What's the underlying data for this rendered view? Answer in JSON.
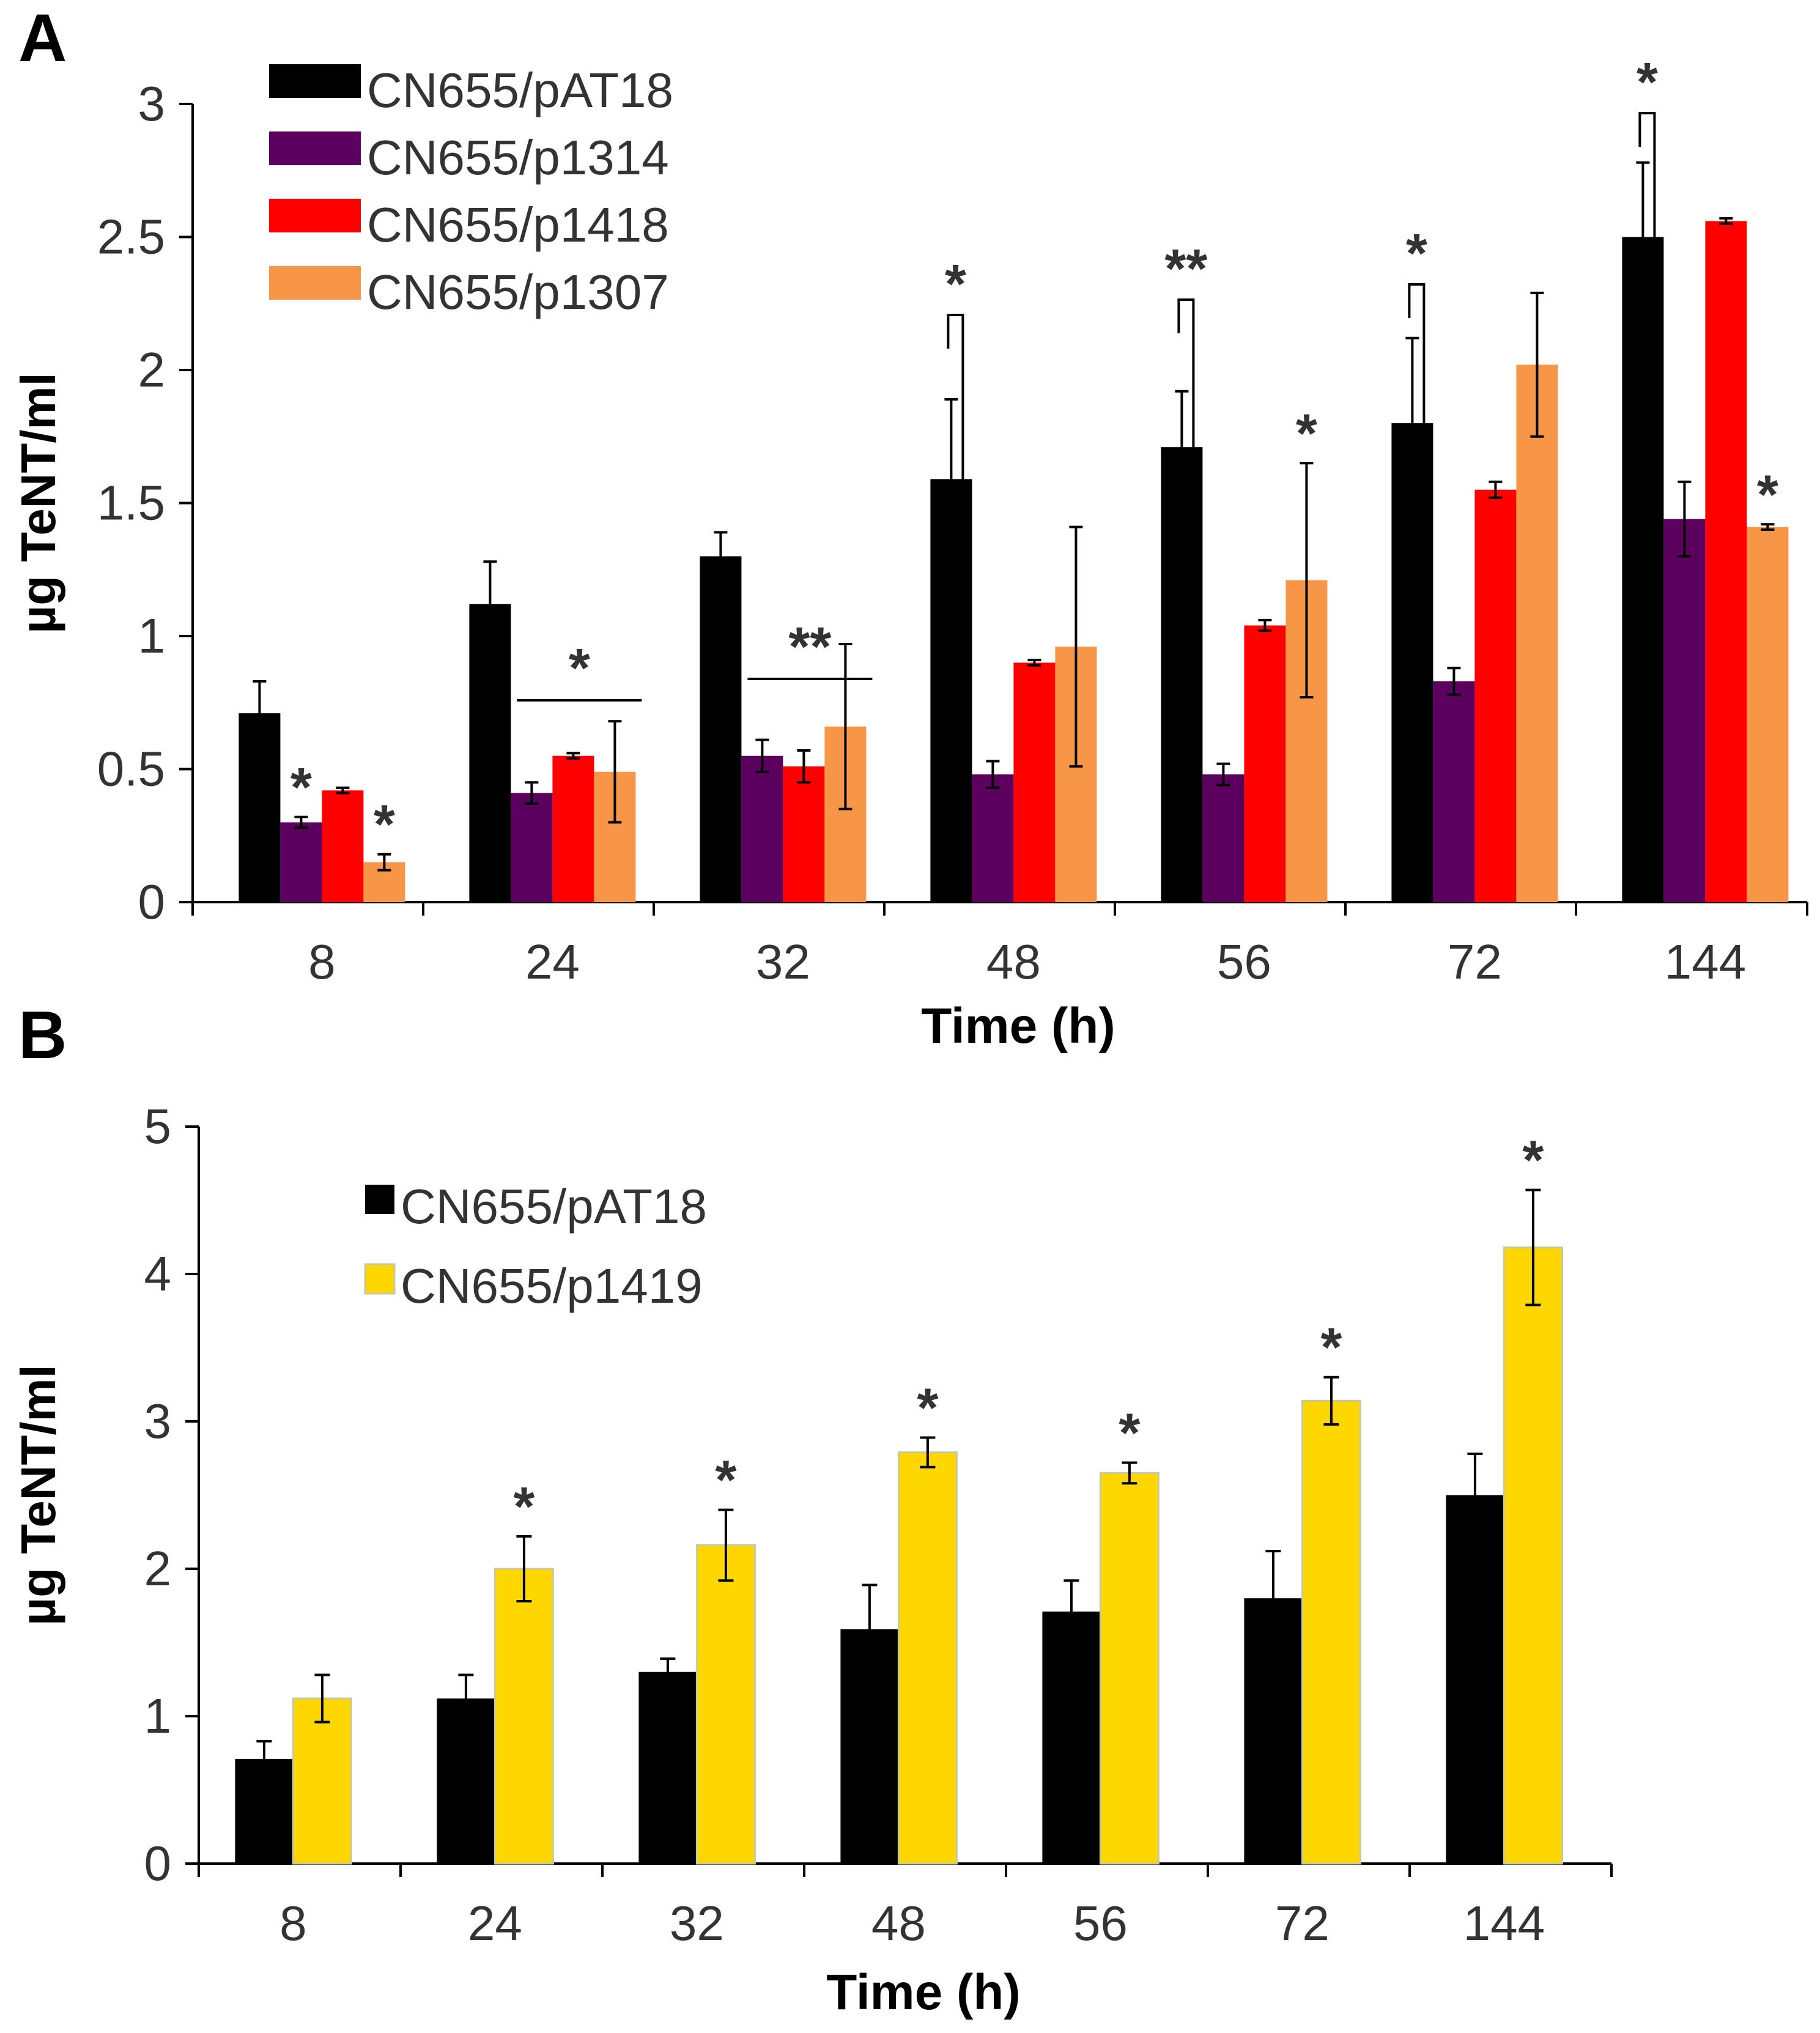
{
  "chart_data": [
    {
      "panel_label": "A",
      "type": "bar",
      "ylabel": "µg TeNT/ml",
      "xlabel": "Time (h)",
      "ylim": [
        0,
        3
      ],
      "yticks": [
        "0",
        "0.5",
        "1",
        "1.5",
        "2",
        "2.5",
        "3"
      ],
      "categories": [
        "8",
        "24",
        "32",
        "48",
        "56",
        "72",
        "144"
      ],
      "legend_position": "top-left",
      "series": [
        {
          "name": "CN655/pAT18",
          "color": "#000000",
          "values": [
            0.71,
            1.12,
            1.3,
            1.59,
            1.71,
            1.8,
            2.5
          ],
          "errors": [
            0.12,
            0.16,
            0.09,
            0.3,
            0.21,
            0.32,
            0.28
          ]
        },
        {
          "name": "CN655/p1314",
          "color": "#5c0060",
          "values": [
            0.3,
            0.41,
            0.55,
            0.48,
            0.48,
            0.83,
            1.44
          ],
          "errors": [
            0.02,
            0.04,
            0.06,
            0.05,
            0.04,
            0.05,
            0.14
          ]
        },
        {
          "name": "CN655/p1418",
          "color": "#ff0000",
          "values": [
            0.42,
            0.55,
            0.51,
            0.9,
            1.04,
            1.55,
            2.56
          ],
          "errors": [
            0.01,
            0.01,
            0.06,
            0.01,
            0.02,
            0.03,
            0.01
          ]
        },
        {
          "name": "CN655/p1307",
          "color": "#f79646",
          "values": [
            0.15,
            0.49,
            0.66,
            0.96,
            1.21,
            2.02,
            1.41
          ],
          "errors": [
            0.03,
            0.19,
            0.31,
            0.45,
            0.44,
            0.27,
            0.01
          ]
        }
      ],
      "significance": [
        {
          "label": "*",
          "type": "star",
          "group": 0,
          "series": 1
        },
        {
          "label": "*",
          "type": "star",
          "group": 0,
          "series": 3
        },
        {
          "label": "*",
          "type": "line",
          "group": 1
        },
        {
          "label": "**",
          "type": "line",
          "group": 2
        },
        {
          "label": "*",
          "type": "bracket",
          "group": 3
        },
        {
          "label": "**",
          "type": "bracket",
          "group": 4
        },
        {
          "label": "*",
          "type": "star",
          "group": 4,
          "series": 3
        },
        {
          "label": "*",
          "type": "bracket",
          "group": 5
        },
        {
          "label": "*",
          "type": "bracket",
          "group": 6
        },
        {
          "label": "*",
          "type": "star",
          "group": 6,
          "series": 3
        }
      ]
    },
    {
      "panel_label": "B",
      "type": "bar",
      "ylabel": "µg TeNT/ml",
      "xlabel": "Time (h)",
      "ylim": [
        0,
        5
      ],
      "yticks": [
        "0",
        "1",
        "2",
        "3",
        "4",
        "5"
      ],
      "categories": [
        "8",
        "24",
        "32",
        "48",
        "56",
        "72",
        "144"
      ],
      "legend_position": "top-left",
      "series": [
        {
          "name": "CN655/pAT18",
          "color": "#000000",
          "values": [
            0.71,
            1.12,
            1.3,
            1.59,
            1.71,
            1.8,
            2.5
          ],
          "errors": [
            0.12,
            0.16,
            0.09,
            0.3,
            0.21,
            0.32,
            0.28
          ]
        },
        {
          "name": "CN655/p1419",
          "color": "#ffd700",
          "values": [
            1.12,
            2.0,
            2.16,
            2.79,
            2.65,
            3.14,
            4.18
          ],
          "errors": [
            0.16,
            0.22,
            0.24,
            0.1,
            0.07,
            0.16,
            0.39
          ]
        }
      ],
      "significance": [
        {
          "label": "*",
          "type": "star",
          "group": 1,
          "series": 1
        },
        {
          "label": "*",
          "type": "star",
          "group": 2,
          "series": 1
        },
        {
          "label": "*",
          "type": "star",
          "group": 3,
          "series": 1
        },
        {
          "label": "*",
          "type": "star",
          "group": 4,
          "series": 1
        },
        {
          "label": "*",
          "type": "star",
          "group": 5,
          "series": 1
        },
        {
          "label": "*",
          "type": "star",
          "group": 6,
          "series": 1
        }
      ]
    }
  ]
}
